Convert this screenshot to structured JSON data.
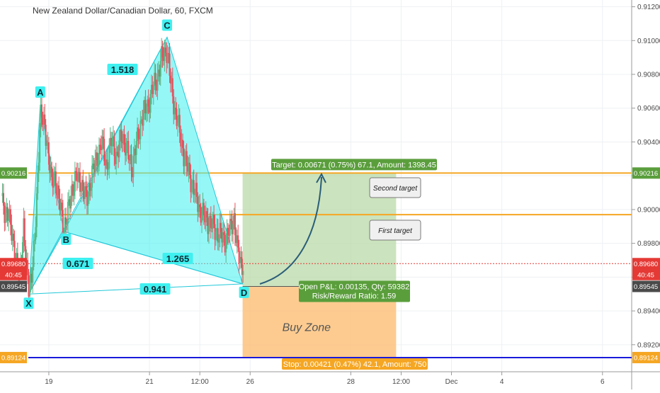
{
  "chart_data": {
    "type": "candlestick",
    "title": "New Zealand Dollar/Canadian Dollar, 60, FXCM",
    "y_ticks": [
      "0.91200",
      "0.91000",
      "0.90800",
      "0.90600",
      "0.90400",
      "0.90200",
      "0.90000",
      "0.89800",
      "0.89600",
      "0.89400",
      "0.89200"
    ],
    "y_tick_values": [
      0.912,
      0.91,
      0.908,
      0.906,
      0.904,
      0.902,
      0.9,
      0.898,
      0.896,
      0.894,
      0.892
    ],
    "ylim": [
      0.8904,
      0.9124
    ],
    "x_ticks": [
      "19",
      "21",
      "12:00",
      "26",
      "28",
      "12:00",
      "Dec",
      "4",
      "6"
    ],
    "x_tick_values": [
      1,
      3,
      4,
      5,
      7,
      8,
      9,
      10,
      12
    ],
    "xlim": [
      0.03,
      12.58
    ],
    "x_units": "days from 18 Nov (19 = 1)",
    "harmonic_pattern": {
      "points": [
        {
          "label": "X",
          "x": 0.6,
          "y": 0.895
        },
        {
          "label": "A",
          "x": 0.83,
          "y": 0.9062
        },
        {
          "label": "B",
          "x": 1.3,
          "y": 0.8987
        },
        {
          "label": "C",
          "x": 3.35,
          "y": 0.9102
        },
        {
          "label": "D",
          "x": 4.85,
          "y": 0.8956
        }
      ],
      "ratios": [
        {
          "text": "1.518",
          "from": "X",
          "to": "C"
        },
        {
          "text": "0.671",
          "from": "X",
          "to": "B"
        },
        {
          "text": "1.265",
          "from": "B",
          "to": "D"
        },
        {
          "text": "0.941",
          "from": "X",
          "to": "D"
        }
      ]
    },
    "position": {
      "entry": 0.89545,
      "target": 0.90216,
      "stop": 0.89124,
      "x_start": 4.85,
      "x_end": 7.9,
      "target_label": "Target: 0.00671 (0.75%) 67.1, Amount: 1398.45",
      "pnl_label_1": "Open P&L: 0.00135, Qty: 59382",
      "pnl_label_2": "Risk/Reward Ratio: 1.59",
      "stop_label": "Stop: 0.00421 (0.47%) 42.1, Amount: 750",
      "zone_label": "Buy Zone"
    },
    "levels": [
      {
        "name": "target",
        "value": 0.90216,
        "color": "#f5a623"
      },
      {
        "name": "first",
        "value": 0.8997,
        "color": "#f5a623"
      },
      {
        "name": "stop",
        "value": 0.89124,
        "color": "#1a1adb"
      },
      {
        "name": "last",
        "value": 0.8968,
        "color": "#e53935"
      }
    ],
    "callouts": [
      "Second target",
      "First target"
    ],
    "price_badges": [
      {
        "text": "0.90216",
        "value": 0.90216,
        "color": "#5a9e3c"
      },
      {
        "text": "0.89680",
        "value": 0.8968,
        "color": "#e53935"
      },
      {
        "text": "40:45",
        "value": 0.89615,
        "color": "#e53935"
      },
      {
        "text": "0.89545",
        "value": 0.89545,
        "color": "#4a4a4a"
      },
      {
        "text": "0.89124",
        "value": 0.89124,
        "color": "#f5a623"
      }
    ],
    "close_path": [
      [
        0.05,
        0.9008
      ],
      [
        0.12,
        0.9
      ],
      [
        0.2,
        0.8995
      ],
      [
        0.28,
        0.8985
      ],
      [
        0.35,
        0.8968
      ],
      [
        0.42,
        0.896
      ],
      [
        0.5,
        0.899
      ],
      [
        0.55,
        0.8965
      ],
      [
        0.6,
        0.8955
      ],
      [
        0.66,
        0.8962
      ],
      [
        0.72,
        0.898
      ],
      [
        0.78,
        0.902
      ],
      [
        0.83,
        0.9058
      ],
      [
        0.9,
        0.905
      ],
      [
        0.97,
        0.904
      ],
      [
        1.05,
        0.9015
      ],
      [
        1.12,
        0.902
      ],
      [
        1.2,
        0.9005
      ],
      [
        1.3,
        0.899
      ],
      [
        1.38,
        0.8998
      ],
      [
        1.46,
        0.9012
      ],
      [
        1.55,
        0.902
      ],
      [
        1.65,
        0.9015
      ],
      [
        1.75,
        0.9005
      ],
      [
        1.85,
        0.902
      ],
      [
        1.95,
        0.903
      ],
      [
        2.05,
        0.904
      ],
      [
        2.15,
        0.9025
      ],
      [
        2.25,
        0.9042
      ],
      [
        2.35,
        0.903
      ],
      [
        2.45,
        0.9045
      ],
      [
        2.55,
        0.9035
      ],
      [
        2.65,
        0.9025
      ],
      [
        2.75,
        0.904
      ],
      [
        2.85,
        0.9055
      ],
      [
        2.95,
        0.906
      ],
      [
        3.05,
        0.907
      ],
      [
        3.15,
        0.9078
      ],
      [
        3.25,
        0.909
      ],
      [
        3.35,
        0.9095
      ],
      [
        3.42,
        0.9075
      ],
      [
        3.5,
        0.906
      ],
      [
        3.6,
        0.9045
      ],
      [
        3.7,
        0.903
      ],
      [
        3.8,
        0.902
      ],
      [
        3.9,
        0.901
      ],
      [
        4.0,
        0.9
      ],
      [
        4.1,
        0.8995
      ],
      [
        4.2,
        0.8992
      ],
      [
        4.3,
        0.8988
      ],
      [
        4.4,
        0.8985
      ],
      [
        4.5,
        0.8982
      ],
      [
        4.6,
        0.8988
      ],
      [
        4.68,
        0.8995
      ],
      [
        4.75,
        0.8975
      ],
      [
        4.82,
        0.8968
      ]
    ]
  }
}
